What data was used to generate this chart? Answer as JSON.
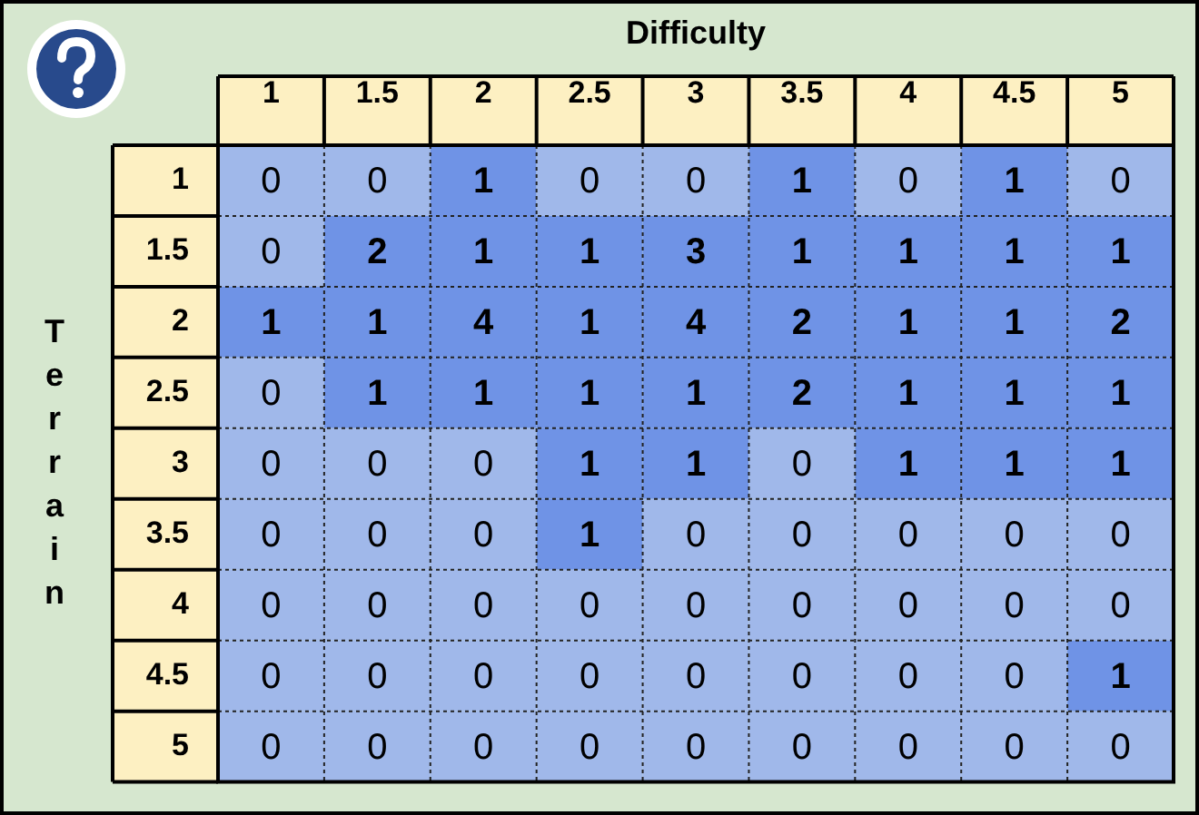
{
  "chart_data": {
    "type": "heatmap",
    "title": "Difficulty",
    "ylabel": "Terrain",
    "categories": [
      "1",
      "1.5",
      "2",
      "2.5",
      "3",
      "3.5",
      "4",
      "4.5",
      "5"
    ],
    "y_categories": [
      "1",
      "1.5",
      "2",
      "2.5",
      "3",
      "3.5",
      "4",
      "4.5",
      "5"
    ],
    "colors": [
      "#a0b8ea",
      "#6f93e6"
    ],
    "cell_labels": [
      [
        "0",
        "0",
        "1",
        "0",
        "0",
        "1",
        "0",
        "1",
        "0"
      ],
      [
        "0",
        "2",
        "1",
        "1",
        "3",
        "1",
        "1",
        "1",
        "1"
      ],
      [
        "1",
        "1",
        "4",
        "1",
        "4",
        "2",
        "1",
        "1",
        "2"
      ],
      [
        "0",
        "1",
        "1",
        "1",
        "1",
        "2",
        "1",
        "1",
        "1"
      ],
      [
        "0",
        "0",
        "0",
        "1",
        "1",
        "0",
        "1",
        "1",
        "1"
      ],
      [
        "0",
        "0",
        "0",
        "1",
        "0",
        "0",
        "0",
        "0",
        "0"
      ],
      [
        "0",
        "0",
        "0",
        "0",
        "0",
        "0",
        "0",
        "0",
        "0"
      ],
      [
        "0",
        "0",
        "0",
        "0",
        "0",
        "0",
        "0",
        "0",
        "1"
      ],
      [
        "0",
        "0",
        "0",
        "0",
        "0",
        "0",
        "0",
        "0",
        "0"
      ]
    ],
    "cells": [
      [
        0,
        0,
        1,
        0,
        0,
        1,
        0,
        1,
        0
      ],
      [
        0,
        2,
        1,
        1,
        3,
        1,
        1,
        1,
        1
      ],
      [
        1,
        1,
        4,
        1,
        4,
        2,
        1,
        1,
        2
      ],
      [
        0,
        1,
        1,
        1,
        1,
        2,
        1,
        1,
        1
      ],
      [
        0,
        0,
        0,
        1,
        1,
        0,
        1,
        1,
        1
      ],
      [
        0,
        0,
        0,
        1,
        0,
        0,
        0,
        0,
        0
      ],
      [
        0,
        0,
        0,
        0,
        0,
        0,
        0,
        0,
        0
      ],
      [
        0,
        0,
        0,
        0,
        0,
        0,
        0,
        0,
        1
      ],
      [
        0,
        0,
        0,
        0,
        0,
        0,
        0,
        0,
        0
      ]
    ]
  }
}
